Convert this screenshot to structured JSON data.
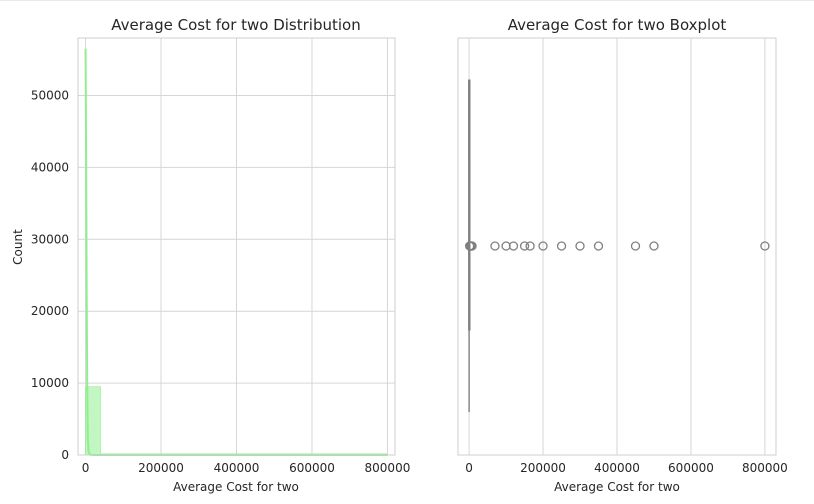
{
  "chart_data": [
    {
      "type": "histogram",
      "title": "Average Cost for two Distribution",
      "xlabel": "Average Cost for two",
      "ylabel": "Count",
      "xlim": [
        -20000,
        820000
      ],
      "ylim": [
        0,
        58000
      ],
      "x_ticks": [
        0,
        200000,
        400000,
        600000,
        800000
      ],
      "x_tick_labels": [
        "0",
        "200000",
        "400000",
        "600000",
        "800000"
      ],
      "y_ticks": [
        0,
        10000,
        20000,
        30000,
        40000,
        50000
      ],
      "y_tick_labels": [
        "0",
        "10000",
        "20000",
        "30000",
        "40000",
        "50000"
      ],
      "bins": [
        {
          "start": 0,
          "end": 40000,
          "count": 9500
        },
        {
          "start": 40000,
          "end": 80000,
          "count": 12
        },
        {
          "start": 80000,
          "end": 120000,
          "count": 6
        },
        {
          "start": 120000,
          "end": 160000,
          "count": 4
        },
        {
          "start": 160000,
          "end": 200000,
          "count": 3
        },
        {
          "start": 200000,
          "end": 240000,
          "count": 3
        },
        {
          "start": 240000,
          "end": 280000,
          "count": 2
        },
        {
          "start": 280000,
          "end": 320000,
          "count": 2
        },
        {
          "start": 320000,
          "end": 360000,
          "count": 1
        },
        {
          "start": 360000,
          "end": 400000,
          "count": 0
        },
        {
          "start": 400000,
          "end": 440000,
          "count": 0
        },
        {
          "start": 440000,
          "end": 480000,
          "count": 1
        },
        {
          "start": 480000,
          "end": 520000,
          "count": 1
        },
        {
          "start": 520000,
          "end": 560000,
          "count": 0
        },
        {
          "start": 560000,
          "end": 600000,
          "count": 0
        },
        {
          "start": 600000,
          "end": 640000,
          "count": 0
        },
        {
          "start": 640000,
          "end": 680000,
          "count": 0
        },
        {
          "start": 680000,
          "end": 720000,
          "count": 0
        },
        {
          "start": 720000,
          "end": 760000,
          "count": 0
        },
        {
          "start": 760000,
          "end": 800000,
          "count": 1
        }
      ],
      "kde": [
        {
          "x": 0,
          "y": 56500
        },
        {
          "x": 1500,
          "y": 42000
        },
        {
          "x": 3000,
          "y": 22000
        },
        {
          "x": 4500,
          "y": 9000
        },
        {
          "x": 6000,
          "y": 2500
        },
        {
          "x": 8000,
          "y": 400
        },
        {
          "x": 12000,
          "y": 50
        },
        {
          "x": 20000,
          "y": 0
        },
        {
          "x": 800000,
          "y": 0
        }
      ],
      "color": "#90ee90",
      "grid": true
    },
    {
      "type": "boxplot",
      "title": "Average Cost for two Boxplot",
      "xlabel": "Average Cost for two",
      "xlim": [
        -30000,
        830000
      ],
      "x_ticks": [
        0,
        200000,
        400000,
        600000,
        800000
      ],
      "x_tick_labels": [
        "0",
        "200000",
        "400000",
        "600000",
        "800000"
      ],
      "box": {
        "min": 0,
        "q1": 250,
        "median": 400,
        "q3": 700,
        "max": 1350
      },
      "outliers": [
        1500,
        2000,
        3000,
        4000,
        5000,
        6000,
        7000,
        8000,
        70000,
        100000,
        120000,
        150000,
        165000,
        200000,
        250000,
        300000,
        350000,
        450000,
        500000,
        800000
      ],
      "color": "#808080",
      "grid": true
    }
  ]
}
